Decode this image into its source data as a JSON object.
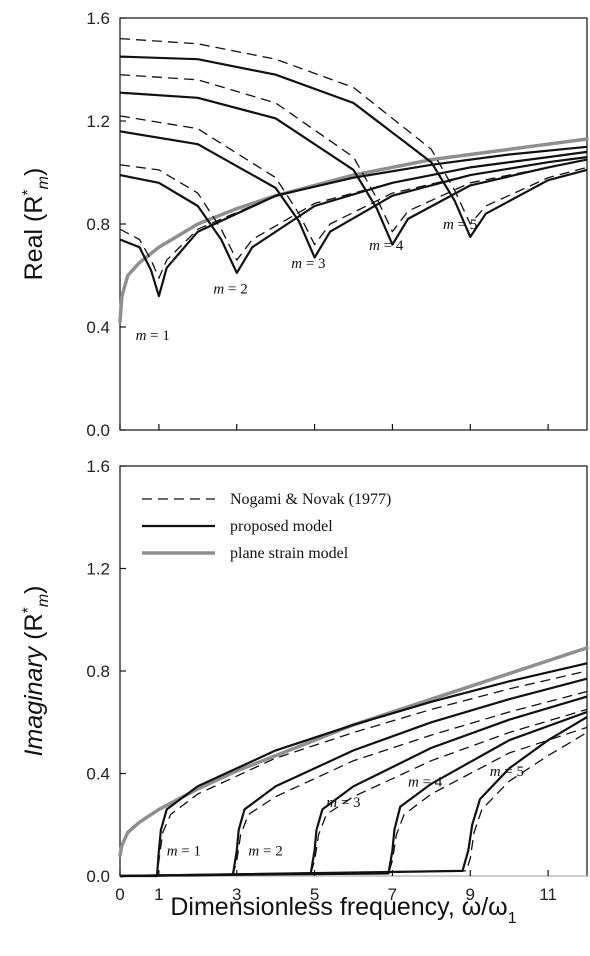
{
  "chart_data": [
    {
      "type": "line",
      "ylabel": "Real (R*m)",
      "ylabel_parts": {
        "main": "Real (R",
        "sup": "*",
        "sub": "m",
        "close": ")"
      },
      "xlim": [
        0,
        12
      ],
      "ylim": [
        0,
        1.6
      ],
      "yticks": [
        "0.0",
        "0.4",
        "0.8",
        "1.2",
        "1.6"
      ],
      "curve_labels": [
        "m = 1",
        "m = 2",
        "m = 3",
        "m = 4",
        "m = 5"
      ],
      "series": [
        {
          "name": "Nogami & Novak (1977)",
          "style": "dashed",
          "modes": [
            {
              "m": 1,
              "x": [
                0,
                0.5,
                0.8,
                1.0,
                1.2,
                2,
                4,
                6,
                8,
                10,
                12
              ],
              "y": [
                0.78,
                0.74,
                0.66,
                0.59,
                0.66,
                0.78,
                0.91,
                0.98,
                1.03,
                1.07,
                1.1
              ]
            },
            {
              "m": 2,
              "x": [
                0,
                1,
                2,
                2.6,
                3.0,
                3.4,
                5,
                7,
                9,
                11,
                12
              ],
              "y": [
                1.03,
                1.01,
                0.92,
                0.78,
                0.66,
                0.74,
                0.88,
                0.96,
                1.02,
                1.06,
                1.08
              ]
            },
            {
              "m": 3,
              "x": [
                0,
                2,
                4,
                4.6,
                5.0,
                5.4,
                7,
                9,
                11,
                12
              ],
              "y": [
                1.22,
                1.17,
                0.98,
                0.84,
                0.72,
                0.8,
                0.92,
                0.99,
                1.04,
                1.06
              ]
            },
            {
              "m": 4,
              "x": [
                0,
                2,
                4,
                6,
                6.6,
                7.0,
                7.4,
                9,
                11,
                12
              ],
              "y": [
                1.38,
                1.36,
                1.27,
                1.06,
                0.9,
                0.77,
                0.85,
                0.96,
                1.02,
                1.05
              ]
            },
            {
              "m": 5,
              "x": [
                0,
                2,
                4,
                6,
                8,
                8.6,
                9.0,
                9.4,
                11,
                12
              ],
              "y": [
                1.52,
                1.5,
                1.44,
                1.33,
                1.09,
                0.93,
                0.8,
                0.87,
                0.98,
                1.02
              ]
            }
          ]
        },
        {
          "name": "proposed model",
          "style": "solid",
          "modes": [
            {
              "m": 1,
              "x": [
                0,
                0.5,
                0.8,
                1.0,
                1.2,
                2,
                4,
                6,
                8,
                10,
                12
              ],
              "y": [
                0.74,
                0.71,
                0.62,
                0.52,
                0.63,
                0.77,
                0.91,
                0.98,
                1.03,
                1.07,
                1.1
              ]
            },
            {
              "m": 2,
              "x": [
                0,
                1,
                2,
                2.6,
                3.0,
                3.4,
                5,
                7,
                9,
                11,
                12
              ],
              "y": [
                0.99,
                0.96,
                0.87,
                0.74,
                0.61,
                0.71,
                0.87,
                0.96,
                1.02,
                1.06,
                1.08
              ]
            },
            {
              "m": 3,
              "x": [
                0,
                2,
                4,
                4.6,
                5.0,
                5.4,
                7,
                9,
                11,
                12
              ],
              "y": [
                1.16,
                1.11,
                0.94,
                0.81,
                0.67,
                0.77,
                0.91,
                0.99,
                1.04,
                1.06
              ]
            },
            {
              "m": 4,
              "x": [
                0,
                2,
                4,
                6,
                6.6,
                7.0,
                7.4,
                9,
                11,
                12
              ],
              "y": [
                1.31,
                1.29,
                1.21,
                1.01,
                0.86,
                0.72,
                0.82,
                0.95,
                1.02,
                1.05
              ]
            },
            {
              "m": 5,
              "x": [
                0,
                2,
                4,
                6,
                8,
                8.6,
                9.0,
                9.4,
                11,
                12
              ],
              "y": [
                1.45,
                1.44,
                1.38,
                1.27,
                1.04,
                0.89,
                0.75,
                0.84,
                0.97,
                1.01
              ]
            }
          ]
        },
        {
          "name": "plane strain model",
          "style": "solid-gray",
          "x": [
            0,
            0.05,
            0.2,
            0.5,
            1,
            2,
            3,
            4,
            5,
            6,
            8,
            10,
            12
          ],
          "y": [
            0.42,
            0.52,
            0.6,
            0.65,
            0.71,
            0.8,
            0.86,
            0.91,
            0.95,
            0.99,
            1.05,
            1.09,
            1.13
          ]
        }
      ]
    },
    {
      "type": "line",
      "xlabel": "Dimensionless frequency,  ω/ω1",
      "xlabel_parts": {
        "main": "Dimensionless frequency,  ω/ω",
        "sub": "1"
      },
      "ylabel": "Imaginary (R*m)",
      "ylabel_parts": {
        "main_italic": "Imaginary",
        "open": " (R",
        "sup": "*",
        "sub": "m",
        "close": ")"
      },
      "xlim": [
        0,
        12
      ],
      "ylim": [
        0,
        1.6
      ],
      "xticks": [
        "0",
        "1",
        "3",
        "5",
        "7",
        "9",
        "11"
      ],
      "xtick_values": [
        0,
        1,
        3,
        5,
        7,
        9,
        11
      ],
      "yticks": [
        "0.0",
        "0.4",
        "0.8",
        "1.2",
        "1.6"
      ],
      "legend": [
        "Nogami & Novak (1977)",
        "proposed model",
        "plane strain model"
      ],
      "legend_position": "top-left",
      "curve_labels": [
        "m = 1",
        "m = 2",
        "m = 3",
        "m = 4",
        "m = 5"
      ],
      "series": [
        {
          "name": "Nogami & Novak (1977)",
          "style": "dashed",
          "modes": [
            {
              "m": 1,
              "x": [
                0,
                0.95,
                1.0,
                1.1,
                1.3,
                2,
                4,
                6,
                8,
                10,
                12
              ],
              "y": [
                0,
                0,
                0.06,
                0.17,
                0.24,
                0.32,
                0.46,
                0.56,
                0.65,
                0.73,
                0.8
              ]
            },
            {
              "m": 2,
              "x": [
                0,
                2.9,
                3.0,
                3.1,
                3.3,
                4,
                6,
                8,
                10,
                12
              ],
              "y": [
                0,
                0.005,
                0.06,
                0.16,
                0.24,
                0.31,
                0.45,
                0.55,
                0.64,
                0.72
              ]
            },
            {
              "m": 3,
              "x": [
                0,
                4.9,
                5.0,
                5.1,
                5.3,
                6,
                8,
                10,
                12
              ],
              "y": [
                0,
                0.01,
                0.06,
                0.16,
                0.24,
                0.31,
                0.45,
                0.56,
                0.65
              ]
            },
            {
              "m": 4,
              "x": [
                0,
                6.9,
                7.0,
                7.1,
                7.3,
                8,
                10,
                12
              ],
              "y": [
                0,
                0.01,
                0.06,
                0.16,
                0.24,
                0.32,
                0.48,
                0.58
              ]
            },
            {
              "m": 5,
              "x": [
                0,
                8.9,
                9.0,
                9.1,
                9.3,
                10,
                11,
                12
              ],
              "y": [
                0,
                0.02,
                0.07,
                0.17,
                0.26,
                0.37,
                0.47,
                0.56
              ]
            }
          ]
        },
        {
          "name": "proposed model",
          "style": "solid",
          "modes": [
            {
              "m": 1,
              "x": [
                0,
                0.95,
                1.0,
                1.05,
                1.2,
                2,
                4,
                6,
                8,
                10,
                12
              ],
              "y": [
                0,
                0,
                0.1,
                0.18,
                0.26,
                0.35,
                0.49,
                0.59,
                0.68,
                0.76,
                0.83
              ]
            },
            {
              "m": 2,
              "x": [
                0,
                2.9,
                3.0,
                3.05,
                3.2,
                4,
                6,
                8,
                10,
                12
              ],
              "y": [
                0,
                0.005,
                0.1,
                0.18,
                0.26,
                0.35,
                0.49,
                0.6,
                0.69,
                0.77
              ]
            },
            {
              "m": 3,
              "x": [
                0,
                4.9,
                5.0,
                5.05,
                5.2,
                6,
                8,
                10,
                12
              ],
              "y": [
                0,
                0.01,
                0.1,
                0.18,
                0.26,
                0.35,
                0.5,
                0.61,
                0.7
              ]
            },
            {
              "m": 4,
              "x": [
                0,
                6.9,
                7.0,
                7.05,
                7.2,
                8,
                10,
                12
              ],
              "y": [
                0,
                0.01,
                0.1,
                0.18,
                0.27,
                0.36,
                0.53,
                0.64
              ]
            },
            {
              "m": 5,
              "x": [
                0,
                8.8,
                8.95,
                9.05,
                9.25,
                10,
                11,
                12
              ],
              "y": [
                0,
                0.02,
                0.1,
                0.2,
                0.3,
                0.42,
                0.53,
                0.62
              ]
            }
          ]
        },
        {
          "name": "plane strain model",
          "style": "solid-gray",
          "x": [
            0,
            0.05,
            0.2,
            0.5,
            1,
            2,
            3,
            4,
            5,
            6,
            8,
            10,
            12
          ],
          "y": [
            0.08,
            0.12,
            0.17,
            0.21,
            0.26,
            0.34,
            0.41,
            0.47,
            0.53,
            0.59,
            0.69,
            0.79,
            0.89
          ]
        }
      ]
    }
  ],
  "colors": {
    "dashed": "#111111",
    "solid": "#111111",
    "plane_strain": "#8f8f8f",
    "axes": "#111111"
  }
}
